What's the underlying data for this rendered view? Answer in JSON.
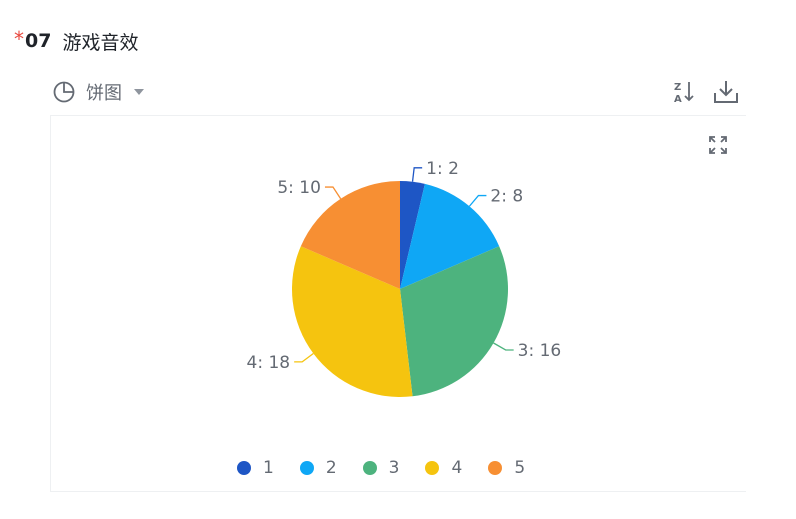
{
  "question": {
    "required_mark": "*",
    "number": "07",
    "title": "游戏音效"
  },
  "toolbar": {
    "chart_type_label": "饼图",
    "chart_type_icon": "pie-chart-icon",
    "sort_icon": "sort-za-icon",
    "download_icon": "download-icon",
    "expand_icon": "expand-icon"
  },
  "colors": {
    "series": [
      "#1e56c5",
      "#0fa7f5",
      "#4db37e",
      "#f5c40f",
      "#f78f33"
    ],
    "required": "#e8483e"
  },
  "chart_data": {
    "type": "pie",
    "categories": [
      "1",
      "2",
      "3",
      "4",
      "5"
    ],
    "values": [
      2,
      8,
      16,
      18,
      10
    ],
    "data_labels": [
      "1: 2",
      "2: 8",
      "3: 16",
      "4: 18",
      "5: 10"
    ],
    "legend": [
      "1",
      "2",
      "3",
      "4",
      "5"
    ],
    "legend_position": "bottom"
  }
}
